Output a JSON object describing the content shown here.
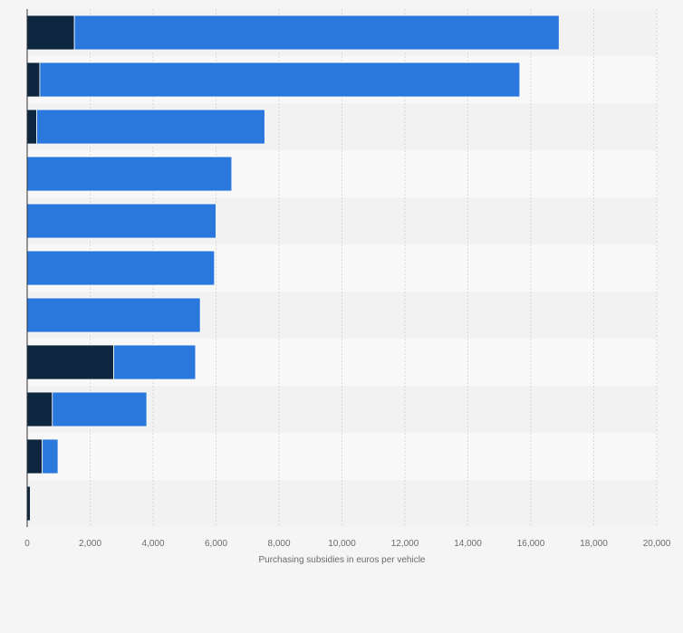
{
  "chart_data": {
    "type": "bar",
    "orientation": "horizontal",
    "stacked": true,
    "title": "",
    "xlabel": "Purchasing subsidies in euros per vehicle",
    "ylabel": "",
    "xlim": [
      0,
      20000
    ],
    "x_ticks": [
      0,
      2000,
      4000,
      6000,
      8000,
      10000,
      12000,
      14000,
      16000,
      18000,
      20000
    ],
    "x_tick_labels": [
      "0",
      "2,000",
      "4,000",
      "6,000",
      "8,000",
      "10,000",
      "12,000",
      "14,000",
      "16,000",
      "18,000",
      "20,000"
    ],
    "categories": [
      "",
      "",
      "",
      "",
      "",
      "",
      "",
      "",
      "",
      "",
      ""
    ],
    "series": [
      {
        "color": "#0f2640",
        "values": [
          1500,
          400,
          300,
          0,
          0,
          0,
          0,
          2750,
          800,
          480,
          100
        ]
      },
      {
        "color": "#2a78dc",
        "values": [
          15400,
          15250,
          7250,
          6500,
          6000,
          5950,
          5500,
          2600,
          3000,
          500,
          0
        ]
      }
    ],
    "grid": true,
    "legend": "none"
  }
}
